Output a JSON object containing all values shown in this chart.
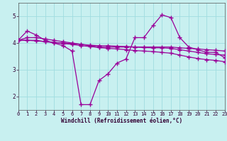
{
  "xlabel": "Windchill (Refroidissement éolien,°C)",
  "background_color": "#c8f0f0",
  "grid_color": "#a0dce0",
  "line_color": "#990099",
  "xmin": 0,
  "xmax": 23,
  "ymin": 1.5,
  "ymax": 5.5,
  "yticks": [
    2,
    3,
    4,
    5
  ],
  "xticks": [
    0,
    1,
    2,
    3,
    4,
    5,
    6,
    7,
    8,
    9,
    10,
    11,
    12,
    13,
    14,
    15,
    16,
    17,
    18,
    19,
    20,
    21,
    22,
    23
  ],
  "line1_x": [
    0,
    1,
    2,
    3,
    4,
    5,
    6,
    7,
    8,
    9,
    10,
    11,
    12,
    13,
    14,
    15,
    16,
    17,
    18,
    19,
    20,
    21,
    22,
    23
  ],
  "line1_y": [
    4.1,
    4.45,
    4.3,
    4.1,
    4.0,
    3.9,
    3.7,
    1.7,
    1.7,
    2.6,
    2.85,
    3.25,
    3.4,
    4.2,
    4.2,
    4.65,
    5.05,
    4.95,
    4.2,
    3.85,
    3.75,
    3.65,
    3.65,
    3.45
  ],
  "line2_x": [
    0,
    1,
    2,
    3,
    4,
    5,
    6,
    7,
    8,
    9,
    10,
    11,
    12,
    13,
    14,
    15,
    16,
    17,
    18,
    19,
    20,
    21,
    22,
    23
  ],
  "line2_y": [
    4.1,
    4.2,
    4.2,
    4.15,
    4.1,
    4.05,
    4.0,
    3.95,
    3.9,
    3.85,
    3.85,
    3.85,
    3.85,
    3.85,
    3.85,
    3.85,
    3.85,
    3.85,
    3.82,
    3.8,
    3.78,
    3.75,
    3.73,
    3.7
  ],
  "line3_x": [
    0,
    1,
    2,
    3,
    4,
    5,
    6,
    7,
    8,
    9,
    10,
    11,
    12,
    13,
    14,
    15,
    16,
    17,
    18,
    19,
    20,
    21,
    22,
    23
  ],
  "line3_y": [
    4.1,
    4.1,
    4.1,
    4.05,
    4.02,
    4.0,
    3.98,
    3.95,
    3.92,
    3.9,
    3.9,
    3.88,
    3.87,
    3.85,
    3.83,
    3.82,
    3.82,
    3.8,
    3.75,
    3.7,
    3.65,
    3.6,
    3.57,
    3.55
  ],
  "line4_x": [
    0,
    1,
    2,
    3,
    4,
    5,
    6,
    7,
    8,
    9,
    10,
    11,
    12,
    13,
    14,
    15,
    16,
    17,
    18,
    19,
    20,
    21,
    22,
    23
  ],
  "line4_y": [
    4.1,
    4.1,
    4.08,
    4.05,
    4.02,
    3.98,
    3.95,
    3.9,
    3.87,
    3.83,
    3.8,
    3.78,
    3.75,
    3.72,
    3.7,
    3.68,
    3.65,
    3.62,
    3.55,
    3.48,
    3.42,
    3.38,
    3.35,
    3.3
  ]
}
